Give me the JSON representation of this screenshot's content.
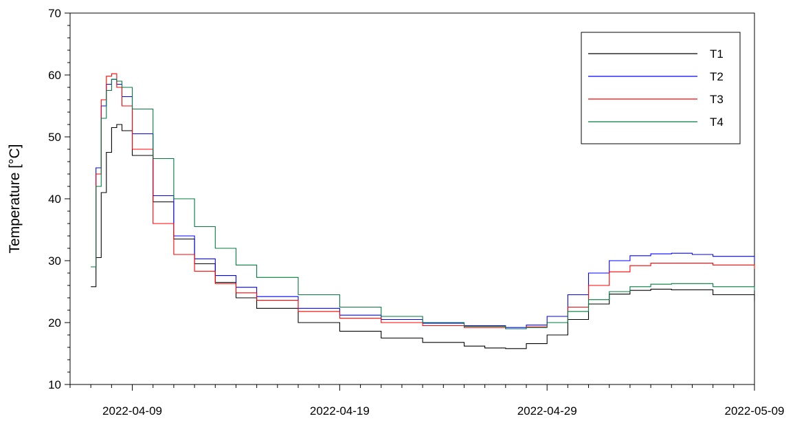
{
  "chart_data": {
    "type": "line",
    "title": "",
    "xlabel": "",
    "ylabel": "Temperature [°C]",
    "xlim": [
      "2022-04-06",
      "2022-05-09"
    ],
    "ylim": [
      10,
      70
    ],
    "y_ticks": [
      10,
      20,
      30,
      40,
      50,
      60,
      70
    ],
    "x_ticks": [
      "2022-04-09",
      "2022-04-19",
      "2022-04-29",
      "2022-05-09"
    ],
    "grid": false,
    "legend_position": "top-right",
    "series": [
      {
        "name": "T1",
        "color": "#000000",
        "points": [
          [
            "2022-04-07 00:00",
            25.8
          ],
          [
            "2022-04-07 06:00",
            30.5
          ],
          [
            "2022-04-07 12:00",
            41.0
          ],
          [
            "2022-04-07 18:00",
            47.5
          ],
          [
            "2022-04-08 00:00",
            51.5
          ],
          [
            "2022-04-08 06:00",
            52.0
          ],
          [
            "2022-04-08 12:00",
            51.0
          ],
          [
            "2022-04-09 00:00",
            47.0
          ],
          [
            "2022-04-10 00:00",
            39.5
          ],
          [
            "2022-04-11 00:00",
            33.5
          ],
          [
            "2022-04-12 00:00",
            29.5
          ],
          [
            "2022-04-13 00:00",
            26.5
          ],
          [
            "2022-04-14 00:00",
            24.0
          ],
          [
            "2022-04-15 00:00",
            22.3
          ],
          [
            "2022-04-17 00:00",
            20.0
          ],
          [
            "2022-04-19 00:00",
            18.6
          ],
          [
            "2022-04-21 00:00",
            17.5
          ],
          [
            "2022-04-23 00:00",
            16.8
          ],
          [
            "2022-04-25 00:00",
            16.2
          ],
          [
            "2022-04-26 00:00",
            15.9
          ],
          [
            "2022-04-27 00:00",
            15.8
          ],
          [
            "2022-04-28 00:00",
            16.6
          ],
          [
            "2022-04-29 00:00",
            18.0
          ],
          [
            "2022-04-30 00:00",
            20.5
          ],
          [
            "2022-05-01 00:00",
            23.0
          ],
          [
            "2022-05-02 00:00",
            24.6
          ],
          [
            "2022-05-03 00:00",
            25.2
          ],
          [
            "2022-05-04 00:00",
            25.4
          ],
          [
            "2022-05-05 00:00",
            25.3
          ],
          [
            "2022-05-07 00:00",
            24.5
          ],
          [
            "2022-05-09 00:00",
            23.5
          ]
        ]
      },
      {
        "name": "T2",
        "color": "#0000ff",
        "points": [
          [
            "2022-04-07 00:00",
            29.0
          ],
          [
            "2022-04-07 06:00",
            45.0
          ],
          [
            "2022-04-07 12:00",
            55.0
          ],
          [
            "2022-04-07 18:00",
            58.5
          ],
          [
            "2022-04-08 00:00",
            59.3
          ],
          [
            "2022-04-08 06:00",
            58.5
          ],
          [
            "2022-04-08 12:00",
            56.5
          ],
          [
            "2022-04-09 00:00",
            50.5
          ],
          [
            "2022-04-10 00:00",
            40.5
          ],
          [
            "2022-04-11 00:00",
            34.0
          ],
          [
            "2022-04-12 00:00",
            30.3
          ],
          [
            "2022-04-13 00:00",
            27.6
          ],
          [
            "2022-04-14 00:00",
            25.7
          ],
          [
            "2022-04-15 00:00",
            24.2
          ],
          [
            "2022-04-17 00:00",
            22.3
          ],
          [
            "2022-04-19 00:00",
            21.2
          ],
          [
            "2022-04-21 00:00",
            20.5
          ],
          [
            "2022-04-23 00:00",
            19.9
          ],
          [
            "2022-04-25 00:00",
            19.5
          ],
          [
            "2022-04-27 00:00",
            19.2
          ],
          [
            "2022-04-28 00:00",
            19.6
          ],
          [
            "2022-04-29 00:00",
            21.0
          ],
          [
            "2022-04-30 00:00",
            24.5
          ],
          [
            "2022-05-01 00:00",
            28.0
          ],
          [
            "2022-05-02 00:00",
            30.0
          ],
          [
            "2022-05-03 00:00",
            30.8
          ],
          [
            "2022-05-04 00:00",
            31.1
          ],
          [
            "2022-05-05 00:00",
            31.2
          ],
          [
            "2022-05-06 00:00",
            31.0
          ],
          [
            "2022-05-07 00:00",
            30.7
          ],
          [
            "2022-05-09 00:00",
            29.7
          ]
        ]
      },
      {
        "name": "T3",
        "color": "#ff0000",
        "points": [
          [
            "2022-04-07 00:00",
            29.0
          ],
          [
            "2022-04-07 06:00",
            44.0
          ],
          [
            "2022-04-07 12:00",
            56.0
          ],
          [
            "2022-04-07 18:00",
            59.8
          ],
          [
            "2022-04-08 00:00",
            60.2
          ],
          [
            "2022-04-08 06:00",
            58.0
          ],
          [
            "2022-04-08 12:00",
            55.0
          ],
          [
            "2022-04-09 00:00",
            48.0
          ],
          [
            "2022-04-10 00:00",
            36.0
          ],
          [
            "2022-04-11 00:00",
            31.0
          ],
          [
            "2022-04-12 00:00",
            28.3
          ],
          [
            "2022-04-13 00:00",
            26.3
          ],
          [
            "2022-04-14 00:00",
            24.8
          ],
          [
            "2022-04-15 00:00",
            23.6
          ],
          [
            "2022-04-17 00:00",
            21.8
          ],
          [
            "2022-04-19 00:00",
            20.7
          ],
          [
            "2022-04-21 00:00",
            20.0
          ],
          [
            "2022-04-23 00:00",
            19.5
          ],
          [
            "2022-04-25 00:00",
            19.2
          ],
          [
            "2022-04-27 00:00",
            19.0
          ],
          [
            "2022-04-28 00:00",
            19.3
          ],
          [
            "2022-04-29 00:00",
            20.0
          ],
          [
            "2022-04-30 00:00",
            22.5
          ],
          [
            "2022-05-01 00:00",
            26.0
          ],
          [
            "2022-05-02 00:00",
            28.2
          ],
          [
            "2022-05-03 00:00",
            29.2
          ],
          [
            "2022-05-04 00:00",
            29.6
          ],
          [
            "2022-05-05 00:00",
            29.6
          ],
          [
            "2022-05-07 00:00",
            29.3
          ],
          [
            "2022-05-09 00:00",
            28.7
          ]
        ]
      },
      {
        "name": "T4",
        "color": "#007a3d",
        "points": [
          [
            "2022-04-07 00:00",
            29.0
          ],
          [
            "2022-04-07 06:00",
            42.0
          ],
          [
            "2022-04-07 12:00",
            53.0
          ],
          [
            "2022-04-07 18:00",
            57.5
          ],
          [
            "2022-04-08 00:00",
            59.3
          ],
          [
            "2022-04-08 06:00",
            59.0
          ],
          [
            "2022-04-08 12:00",
            58.0
          ],
          [
            "2022-04-09 00:00",
            54.5
          ],
          [
            "2022-04-10 00:00",
            46.5
          ],
          [
            "2022-04-11 00:00",
            40.0
          ],
          [
            "2022-04-12 00:00",
            35.5
          ],
          [
            "2022-04-13 00:00",
            32.0
          ],
          [
            "2022-04-14 00:00",
            29.3
          ],
          [
            "2022-04-15 00:00",
            27.3
          ],
          [
            "2022-04-17 00:00",
            24.5
          ],
          [
            "2022-04-19 00:00",
            22.5
          ],
          [
            "2022-04-21 00:00",
            21.0
          ],
          [
            "2022-04-23 00:00",
            20.0
          ],
          [
            "2022-04-25 00:00",
            19.4
          ],
          [
            "2022-04-27 00:00",
            19.0
          ],
          [
            "2022-04-28 00:00",
            19.2
          ],
          [
            "2022-04-29 00:00",
            20.0
          ],
          [
            "2022-04-30 00:00",
            21.8
          ],
          [
            "2022-05-01 00:00",
            23.7
          ],
          [
            "2022-05-02 00:00",
            25.0
          ],
          [
            "2022-05-03 00:00",
            25.8
          ],
          [
            "2022-05-04 00:00",
            26.2
          ],
          [
            "2022-05-05 00:00",
            26.3
          ],
          [
            "2022-05-07 00:00",
            25.8
          ],
          [
            "2022-05-09 00:00",
            25.2
          ]
        ]
      }
    ]
  }
}
